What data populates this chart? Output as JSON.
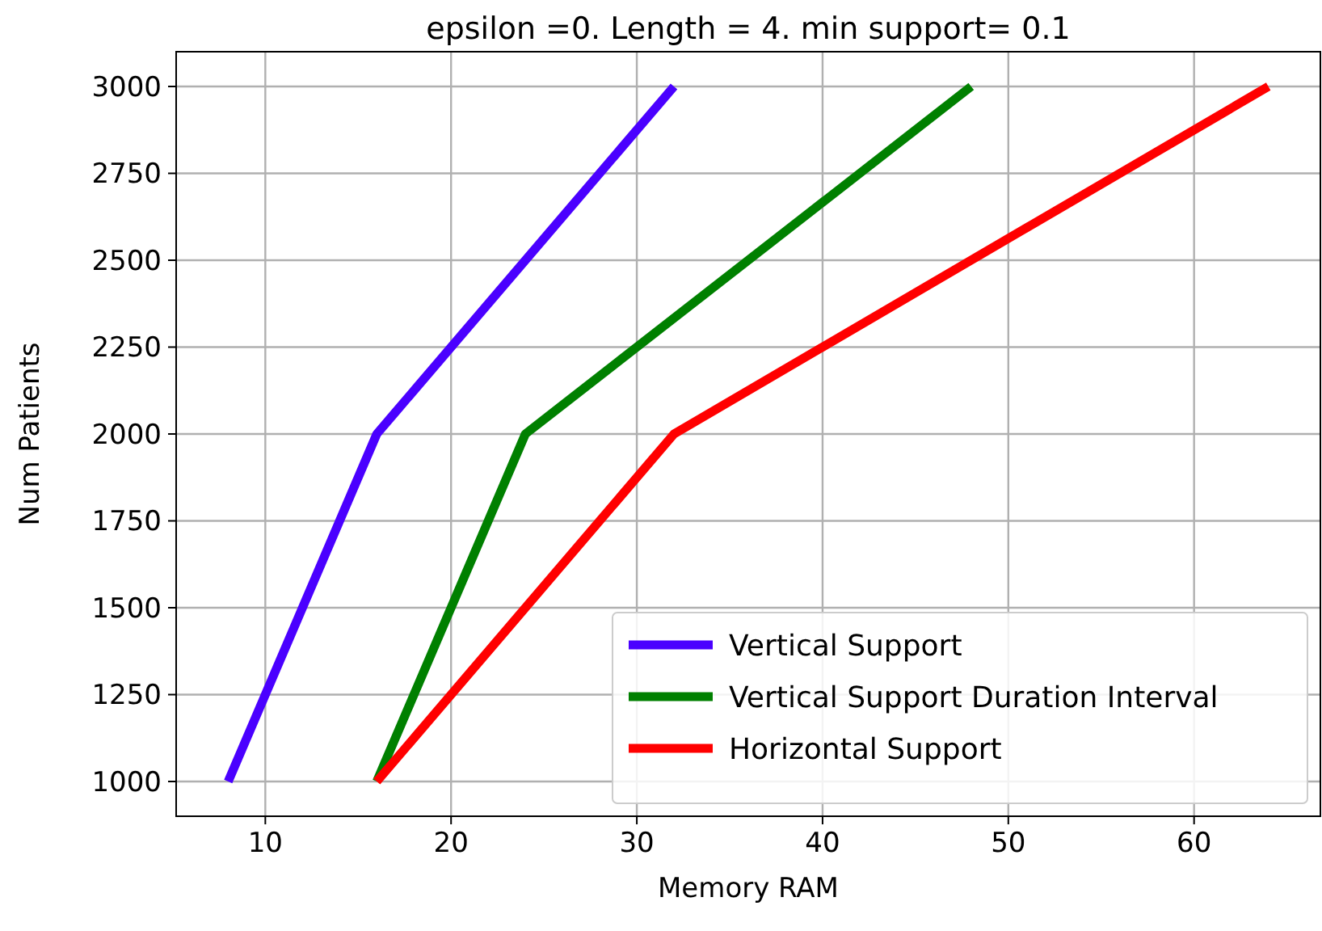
{
  "chart_data": {
    "type": "line",
    "title": "epsilon =0. Length = 4. min support= 0.1",
    "xlabel": "Memory RAM",
    "ylabel": "Num Patients",
    "series": [
      {
        "name": "Vertical Support",
        "color": "#4a00ff",
        "x": [
          8,
          16,
          32
        ],
        "values": [
          1000,
          2000,
          3000
        ]
      },
      {
        "name": "Vertical Support Duration Interval",
        "color": "#008000",
        "x": [
          16,
          24,
          48
        ],
        "values": [
          1000,
          2000,
          3000
        ]
      },
      {
        "name": "Horizontal Support",
        "color": "#ff0000",
        "x": [
          16,
          32,
          64
        ],
        "values": [
          1000,
          2000,
          3000
        ]
      }
    ],
    "xlim": [
      5.2,
      66.8
    ],
    "xticks": [
      10,
      20,
      30,
      40,
      50,
      60
    ],
    "ylim": [
      900,
      3100
    ],
    "yticks": [
      1000,
      1250,
      1500,
      1750,
      2000,
      2250,
      2500,
      2750,
      3000
    ],
    "grid": true,
    "legend": "bottom right",
    "marker": "none",
    "line_style": "solid"
  }
}
